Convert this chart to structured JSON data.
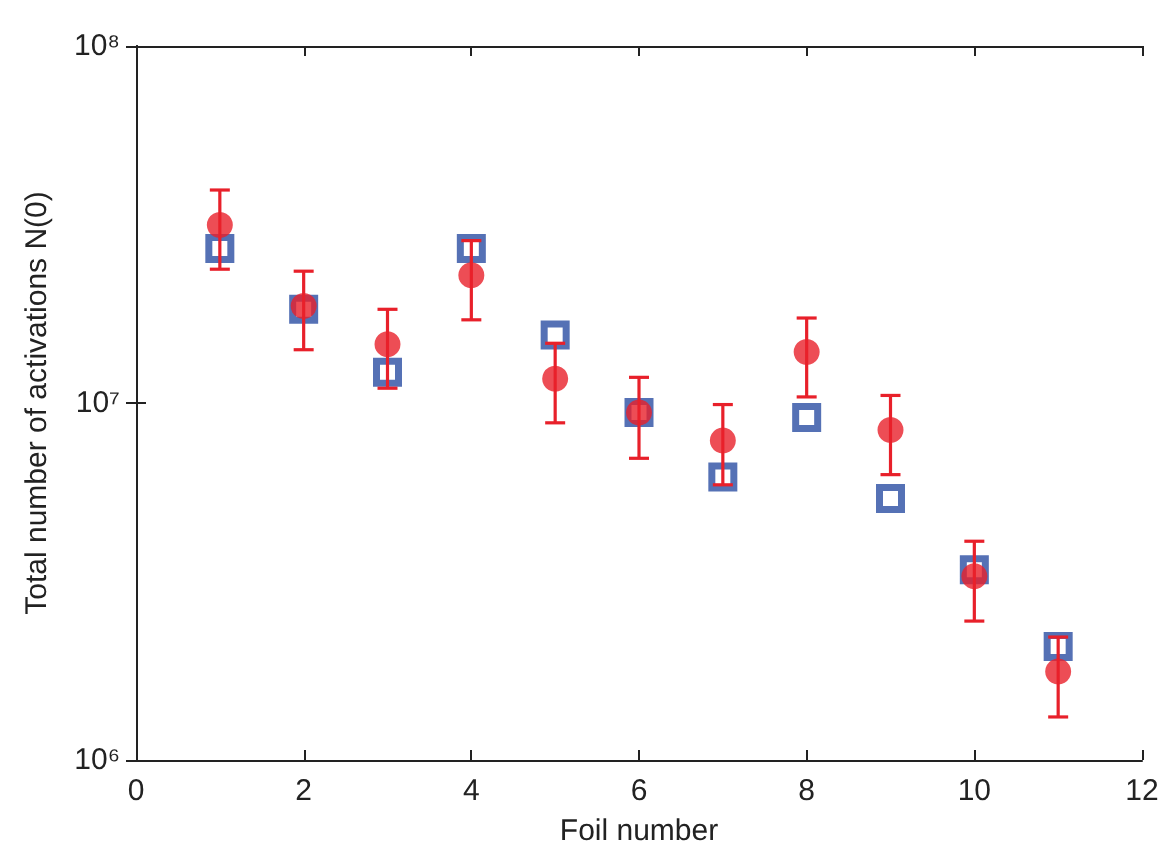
{
  "chart_data": {
    "type": "scatter",
    "xlabel": "Foil number",
    "ylabel": "Total number of activations N(0)",
    "log": "y",
    "grid": false,
    "xlim": [
      0,
      12
    ],
    "xticks": [
      0,
      2,
      4,
      6,
      8,
      10,
      12
    ],
    "ylim": [
      1000000,
      100000000
    ],
    "yticks": [
      {
        "value": 1000000,
        "label": "10⁶"
      },
      {
        "value": 10000000,
        "label": "10⁷"
      },
      {
        "value": 100000000,
        "label": "10⁸"
      }
    ],
    "x": [
      1,
      2,
      3,
      4,
      5,
      6,
      7,
      8,
      9,
      10,
      11
    ],
    "series": [
      {
        "color": "#2b4ea2",
        "marker": "square",
        "values": [
          27100000,
          18300000,
          12200000,
          27100000,
          15500000,
          9400000,
          6200000,
          9100000,
          5400000,
          3410000,
          2080000
        ]
      },
      {
        "color": "#e8202a",
        "marker": "circle",
        "values": [
          31500000,
          18700000,
          14600000,
          22800000,
          11700000,
          9400000,
          7850000,
          13900000,
          8400000,
          3270000,
          1770000
        ],
        "errors": [
          [
            23700000,
            39500000
          ],
          [
            14100000,
            23400000
          ],
          [
            11000000,
            18300000
          ],
          [
            17100000,
            28500000
          ],
          [
            8800000,
            14700000
          ],
          [
            7000000,
            11800000
          ],
          [
            5900000,
            9900000
          ],
          [
            10400000,
            17300000
          ],
          [
            6300000,
            10500000
          ],
          [
            2450000,
            4100000
          ],
          [
            1320000,
            2210000
          ]
        ]
      }
    ]
  }
}
